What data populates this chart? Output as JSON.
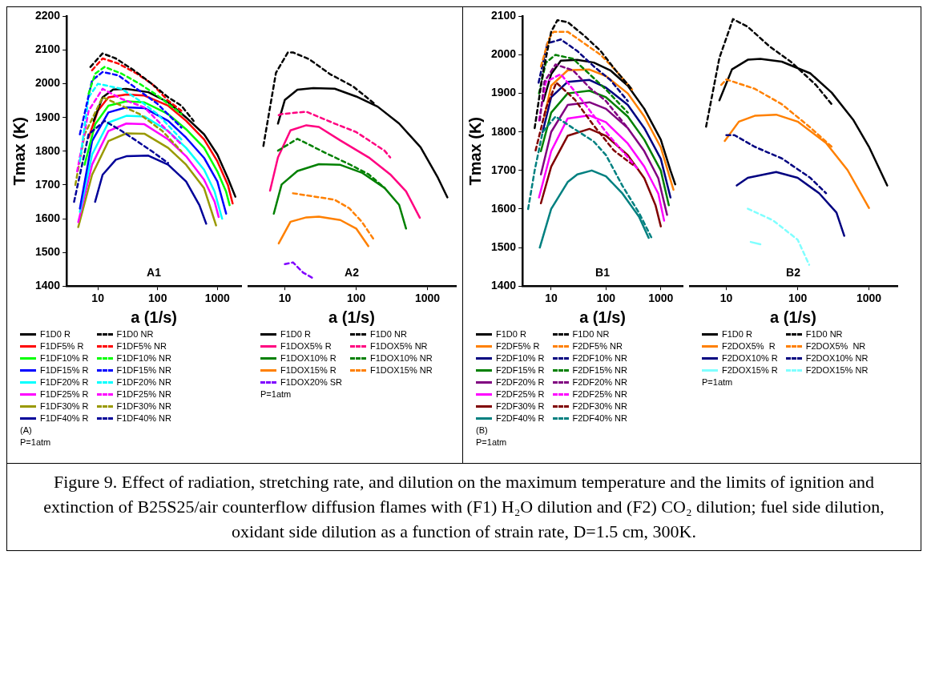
{
  "chart_data": [
    {
      "type": "line",
      "title": "A1",
      "xlabel": "a (1/s)",
      "ylabel": "Tmax (K)",
      "log": "x",
      "xlim": [
        3,
        2500
      ],
      "xticks": [
        10,
        100,
        1000
      ],
      "ylim": [
        1400,
        2200
      ],
      "yticks": [
        1400,
        1500,
        1600,
        1700,
        1800,
        1900,
        2000,
        2100,
        2200
      ],
      "grid": false,
      "marker": "none",
      "legend": "bottom",
      "annotations": [
        "(A)",
        "P=1atm"
      ],
      "series": [
        {
          "name": "F1D0 R",
          "color": "#000000",
          "line_style": "solid",
          "x": [
            8.5,
            12,
            18,
            30,
            70,
            150,
            300,
            600,
            1000,
            1500,
            2000
          ],
          "values": [
            1890,
            1960,
            1983,
            1985,
            1975,
            1945,
            1900,
            1850,
            1790,
            1720,
            1665
          ]
        },
        {
          "name": "F1D0 NR",
          "color": "#000000",
          "line_style": "dashed",
          "x": [
            7.5,
            12,
            20,
            40,
            80,
            150,
            250,
            400
          ],
          "values": [
            2050,
            2090,
            2075,
            2040,
            2000,
            1960,
            1935,
            1890
          ]
        },
        {
          "name": "F1DF5% R",
          "color": "#ff0000",
          "line_style": "solid",
          "x": [
            7,
            10,
            15,
            30,
            60,
            150,
            300,
            600,
            1000,
            1500,
            1800
          ],
          "values": [
            1840,
            1920,
            1960,
            1968,
            1965,
            1935,
            1890,
            1835,
            1770,
            1700,
            1645
          ]
        },
        {
          "name": "F1DF5% NR",
          "color": "#ff0000",
          "line_style": "dashed",
          "x": [
            8,
            12,
            22,
            45,
            80,
            150,
            250
          ],
          "values": [
            2040,
            2075,
            2060,
            2030,
            2000,
            1950,
            1920
          ]
        },
        {
          "name": "F1DF10% R",
          "color": "#00ff00",
          "line_style": "solid",
          "x": [
            6,
            9,
            15,
            30,
            60,
            150,
            300,
            600,
            1000,
            1400,
            1600
          ],
          "values": [
            1760,
            1880,
            1935,
            1948,
            1945,
            1910,
            1865,
            1810,
            1740,
            1680,
            1640
          ]
        },
        {
          "name": "F1DF10% NR",
          "color": "#00ff00",
          "line_style": "dashed",
          "x": [
            7,
            9,
            13,
            25,
            50,
            100,
            250
          ],
          "values": [
            1970,
            2030,
            2050,
            2030,
            2000,
            1965,
            1910
          ]
        },
        {
          "name": "F1DF15% R",
          "color": "#0000ff",
          "line_style": "solid",
          "x": [
            5,
            8,
            15,
            30,
            60,
            150,
            300,
            600,
            1000,
            1400
          ],
          "values": [
            1630,
            1830,
            1915,
            1930,
            1928,
            1890,
            1840,
            1780,
            1710,
            1615
          ]
        },
        {
          "name": "F1DF15% NR",
          "color": "#0000ff",
          "line_style": "dashed",
          "x": [
            5,
            8,
            12,
            22,
            45,
            100,
            250
          ],
          "values": [
            1850,
            2010,
            2035,
            2025,
            1985,
            1940,
            1870
          ]
        },
        {
          "name": "F1DF20% R",
          "color": "#00ffff",
          "line_style": "solid",
          "x": [
            5,
            8,
            15,
            30,
            60,
            150,
            300,
            600,
            900,
            1200
          ],
          "values": [
            1620,
            1790,
            1885,
            1905,
            1903,
            1860,
            1810,
            1745,
            1680,
            1600
          ]
        },
        {
          "name": "F1DF20% NR",
          "color": "#00ffff",
          "line_style": "dashed",
          "x": [
            5,
            7,
            10,
            25,
            50,
            100,
            250
          ],
          "values": [
            1770,
            1960,
            2000,
            1985,
            1950,
            1910,
            1835
          ]
        },
        {
          "name": "F1DF25% R",
          "color": "#ff00ff",
          "line_style": "solid",
          "x": [
            4.7,
            8,
            15,
            30,
            60,
            150,
            300,
            600,
            900,
            1050
          ],
          "values": [
            1590,
            1760,
            1860,
            1882,
            1880,
            1835,
            1785,
            1715,
            1650,
            1605
          ]
        },
        {
          "name": "F1DF25% NR",
          "color": "#ff00ff",
          "line_style": "dashed",
          "x": [
            4.5,
            7,
            12,
            25,
            60,
            130,
            250
          ],
          "values": [
            1740,
            1920,
            1985,
            1955,
            1930,
            1870,
            1820
          ]
        },
        {
          "name": "F1DF30% R",
          "color": "#999900",
          "line_style": "solid",
          "x": [
            4.7,
            8,
            15,
            30,
            60,
            150,
            300,
            600,
            950
          ],
          "values": [
            1575,
            1730,
            1830,
            1853,
            1852,
            1810,
            1760,
            1690,
            1580
          ]
        },
        {
          "name": "F1DF30% NR",
          "color": "#999900",
          "line_style": "dashed",
          "x": [
            4.2,
            6,
            12,
            25,
            50,
            120,
            250
          ],
          "values": [
            1700,
            1850,
            1960,
            1935,
            1910,
            1860,
            1800
          ]
        },
        {
          "name": "F1DF40% R",
          "color": "#000099",
          "line_style": "solid",
          "x": [
            9,
            12,
            20,
            30,
            70,
            150,
            300,
            500,
            650
          ],
          "values": [
            1650,
            1730,
            1775,
            1785,
            1787,
            1760,
            1710,
            1640,
            1585
          ]
        },
        {
          "name": "F1DF40% NR",
          "color": "#000099",
          "line_style": "dashed",
          "x": [
            4,
            7,
            13,
            25,
            45,
            80,
            150
          ],
          "values": [
            1650,
            1850,
            1890,
            1860,
            1830,
            1800,
            1765
          ]
        }
      ]
    },
    {
      "type": "line",
      "title": "A2",
      "xlabel": "a (1/s)",
      "log": "x",
      "xlim": [
        3,
        2500
      ],
      "xticks": [
        10,
        100,
        1000
      ],
      "ylim": [
        1400,
        2200
      ],
      "tick_labels": "x",
      "grid": false,
      "marker": "none",
      "legend": "bottom",
      "annotations": [
        "P=1atm"
      ],
      "series": [
        {
          "name": "F1D0 R",
          "color": "#000000",
          "line_style": "solid",
          "x": [
            8,
            10,
            15,
            25,
            50,
            100,
            200,
            400,
            800,
            1400,
            1900
          ],
          "values": [
            1880,
            1950,
            1980,
            1985,
            1983,
            1960,
            1930,
            1880,
            1810,
            1720,
            1662
          ]
        },
        {
          "name": "F1D0 NR",
          "color": "#000000",
          "line_style": "dashed",
          "x": [
            5,
            7.5,
            11,
            13,
            22,
            43,
            90,
            190
          ],
          "values": [
            1814,
            2030,
            2090,
            2090,
            2070,
            2026,
            1990,
            1935
          ]
        },
        {
          "name": "F1DOX5% R",
          "color": "#ff0080",
          "line_style": "solid",
          "x": [
            6.2,
            8,
            12,
            20,
            30,
            60,
            150,
            300,
            500,
            780
          ],
          "values": [
            1682,
            1780,
            1860,
            1875,
            1870,
            1830,
            1780,
            1730,
            1680,
            1602
          ]
        },
        {
          "name": "F1DOX5% NR",
          "color": "#ff0080",
          "line_style": "dashed",
          "x": [
            8.2,
            9,
            20,
            50,
            100,
            250,
            300
          ],
          "values": [
            1905,
            1908,
            1915,
            1880,
            1855,
            1800,
            1780
          ]
        },
        {
          "name": "F1DOX10% R",
          "color": "#008000",
          "line_style": "solid",
          "x": [
            7,
            9,
            15,
            30,
            60,
            120,
            250,
            400,
            500
          ],
          "values": [
            1614,
            1700,
            1740,
            1760,
            1758,
            1735,
            1690,
            1640,
            1570
          ]
        },
        {
          "name": "F1DOX10% NR",
          "color": "#008000",
          "line_style": "dashed",
          "x": [
            8,
            15,
            40,
            80,
            150,
            250
          ],
          "values": [
            1800,
            1835,
            1790,
            1760,
            1730,
            1690
          ]
        },
        {
          "name": "F1DOX15% R",
          "color": "#ff8000",
          "line_style": "solid",
          "x": [
            8.2,
            12,
            20,
            30,
            60,
            100,
            148
          ],
          "values": [
            1526,
            1590,
            1603,
            1605,
            1595,
            1570,
            1518
          ]
        },
        {
          "name": "F1DOX15% NR",
          "color": "#ff8000",
          "line_style": "dashed",
          "x": [
            13,
            25,
            50,
            80,
            120,
            180
          ],
          "values": [
            1674,
            1665,
            1655,
            1630,
            1590,
            1535
          ]
        },
        {
          "name": "F1DOX20% SR",
          "color": "#8000ff",
          "line_style": "dashed",
          "x": [
            10,
            13,
            18,
            24
          ],
          "values": [
            1465,
            1470,
            1440,
            1425
          ]
        }
      ]
    },
    {
      "type": "line",
      "title": "B1",
      "xlabel": "a (1/s)",
      "ylabel": "Tmax (K)",
      "log": "x",
      "xlim": [
        3,
        2500
      ],
      "xticks": [
        10,
        100,
        1000
      ],
      "ylim": [
        1400,
        2100
      ],
      "yticks": [
        1400,
        1500,
        1600,
        1700,
        1800,
        1900,
        2000,
        2100
      ],
      "grid": false,
      "marker": "none",
      "legend": "bottom",
      "annotations": [
        "(B)",
        "P=1atm"
      ],
      "series": [
        {
          "name": "F1D0 R",
          "color": "#000000",
          "line_style": "solid",
          "x": [
            7.2,
            10,
            15,
            30,
            60,
            120,
            250,
            500,
            1000,
            1500,
            1830
          ],
          "values": [
            1880,
            1950,
            1985,
            1987,
            1980,
            1960,
            1920,
            1860,
            1780,
            1700,
            1664
          ]
        },
        {
          "name": "F1D0 NR",
          "color": "#000000",
          "line_style": "dashed",
          "x": [
            5,
            7,
            10,
            13,
            20,
            40,
            80,
            150,
            300
          ],
          "values": [
            1810,
            1950,
            2060,
            2090,
            2085,
            2050,
            2010,
            1960,
            1910
          ]
        },
        {
          "name": "F2DF5% R",
          "color": "#ff8000",
          "line_style": "solid",
          "x": [
            7.5,
            10,
            20,
            50,
            100,
            250,
            500,
            1000,
            1700
          ],
          "values": [
            1840,
            1920,
            1960,
            1962,
            1945,
            1900,
            1840,
            1760,
            1650
          ]
        },
        {
          "name": "F2DF5% NR",
          "color": "#ff8000",
          "line_style": "dashed",
          "x": [
            6.5,
            9,
            11,
            20,
            40,
            80,
            150,
            300
          ],
          "values": [
            1970,
            2040,
            2060,
            2060,
            2030,
            2000,
            1960,
            1910
          ]
        },
        {
          "name": "F2DF10% R",
          "color": "#000080",
          "line_style": "solid",
          "x": [
            7,
            10,
            20,
            50,
            100,
            250,
            500,
            1000,
            1500
          ],
          "values": [
            1800,
            1890,
            1930,
            1935,
            1915,
            1870,
            1810,
            1730,
            1630
          ]
        },
        {
          "name": "F2DF10% NR",
          "color": "#000080",
          "line_style": "dashed",
          "x": [
            5.9,
            8.5,
            15,
            30,
            60,
            120,
            250
          ],
          "values": [
            1928,
            2030,
            2040,
            2010,
            1970,
            1935,
            1880
          ]
        },
        {
          "name": "F2DF15% R",
          "color": "#008000",
          "line_style": "solid",
          "x": [
            6.5,
            10,
            20,
            50,
            100,
            250,
            500,
            1000,
            1400
          ],
          "values": [
            1750,
            1850,
            1900,
            1907,
            1890,
            1840,
            1780,
            1700,
            1610
          ]
        },
        {
          "name": "F2DF15% NR",
          "color": "#008000",
          "line_style": "dashed",
          "x": [
            6,
            8,
            12,
            25,
            50,
            100,
            250
          ],
          "values": [
            1900,
            1980,
            2000,
            1990,
            1950,
            1910,
            1850
          ]
        },
        {
          "name": "F2DF20% R",
          "color": "#800080",
          "line_style": "solid",
          "x": [
            6.5,
            10,
            20,
            50,
            100,
            250,
            500,
            900,
            1300
          ],
          "values": [
            1690,
            1800,
            1870,
            1877,
            1860,
            1810,
            1750,
            1680,
            1585
          ]
        },
        {
          "name": "F2DF20% NR",
          "color": "#800080",
          "line_style": "dashed",
          "x": [
            6.2,
            7.5,
            12,
            25,
            50,
            100,
            250
          ],
          "values": [
            1830,
            1930,
            1975,
            1960,
            1915,
            1880,
            1810
          ]
        },
        {
          "name": "F2DF25% R",
          "color": "#ff00ff",
          "line_style": "solid",
          "x": [
            6,
            10,
            20,
            50,
            100,
            250,
            500,
            900,
            1150
          ],
          "values": [
            1630,
            1750,
            1835,
            1843,
            1825,
            1770,
            1710,
            1640,
            1570
          ]
        },
        {
          "name": "F2DF25% NR",
          "color": "#ff00ff",
          "line_style": "dashed",
          "x": [
            6,
            8,
            15,
            40,
            100,
            200,
            400
          ],
          "values": [
            1830,
            1930,
            1950,
            1875,
            1800,
            1750,
            1700
          ]
        },
        {
          "name": "F2DF30% R",
          "color": "#800000",
          "line_style": "solid",
          "x": [
            6.5,
            10,
            20,
            50,
            100,
            250,
            500,
            800,
            1000
          ],
          "values": [
            1615,
            1710,
            1790,
            1808,
            1790,
            1740,
            1680,
            1610,
            1555
          ]
        },
        {
          "name": "F2DF30% NR",
          "color": "#800000",
          "line_style": "dashed",
          "x": [
            5.2,
            8,
            12.4,
            27,
            58,
            139,
            335
          ],
          "values": [
            1752,
            1860,
            1928,
            1884,
            1819,
            1752,
            1711
          ]
        },
        {
          "name": "F2DF40% R",
          "color": "#008080",
          "line_style": "solid",
          "x": [
            6.2,
            10,
            20,
            30,
            55,
            100,
            200,
            400,
            600
          ],
          "values": [
            1500,
            1600,
            1670,
            1690,
            1700,
            1685,
            1640,
            1580,
            1525
          ]
        },
        {
          "name": "F2DF40% NR",
          "color": "#008080",
          "line_style": "dashed",
          "x": [
            3.8,
            5,
            7,
            12,
            25,
            60,
            100,
            200,
            400,
            680
          ],
          "values": [
            1600,
            1700,
            1800,
            1840,
            1810,
            1775,
            1740,
            1660,
            1590,
            1525
          ]
        }
      ]
    },
    {
      "type": "line",
      "title": "B2",
      "xlabel": "a (1/s)",
      "log": "x",
      "xlim": [
        3,
        2500
      ],
      "xticks": [
        10,
        100,
        1000
      ],
      "ylim": [
        1400,
        2100
      ],
      "tick_labels": "x",
      "grid": false,
      "marker": "none",
      "legend": "bottom",
      "annotations": [
        "P=1atm",
        "Figure 9. Effect of radiation, stretching rate, and dilution on the maximum temperature and the limits of ignition and extinction of B25S25/air counterflow diffusion flames with (F1) H₂O dilution and (F2) CO₂ dilution; fuel side dilution, oxidant side dilution as a function of strain rate, D=1.5 cm, 300K."
      ],
      "series": [
        {
          "name": "F1D0 R",
          "color": "#000000",
          "line_style": "solid",
          "x": [
            8,
            12,
            20,
            30,
            60,
            150,
            300,
            600,
            1000,
            1800
          ],
          "values": [
            1880,
            1960,
            1985,
            1987,
            1980,
            1950,
            1900,
            1830,
            1760,
            1660
          ]
        },
        {
          "name": "F1D0 NR",
          "color": "#000000",
          "line_style": "dashed",
          "x": [
            5.2,
            8,
            12.4,
            20,
            40,
            80,
            180,
            300
          ],
          "values": [
            1812,
            1990,
            2090,
            2070,
            2020,
            1980,
            1920,
            1870
          ]
        },
        {
          "name": "F2DOX5%  R",
          "color": "#ff8000",
          "line_style": "solid",
          "x": [
            9.5,
            15,
            25,
            50,
            100,
            250,
            500,
            1000
          ],
          "values": [
            1775,
            1825,
            1840,
            1843,
            1825,
            1770,
            1700,
            1602
          ]
        },
        {
          "name": "F2DOX5%  NR",
          "color": "#ff8000",
          "line_style": "dashed",
          "x": [
            8.5,
            10,
            25,
            60,
            150,
            300
          ],
          "values": [
            1920,
            1934,
            1910,
            1870,
            1810,
            1760
          ]
        },
        {
          "name": "F2DOX10% R",
          "color": "#000080",
          "line_style": "solid",
          "x": [
            14,
            20,
            50,
            100,
            200,
            350,
            450
          ],
          "values": [
            1660,
            1680,
            1695,
            1680,
            1640,
            1590,
            1530
          ]
        },
        {
          "name": "F2DOX10% NR",
          "color": "#000080",
          "line_style": "dashed",
          "x": [
            10,
            13,
            25,
            60,
            150,
            250
          ],
          "values": [
            1790,
            1790,
            1760,
            1730,
            1680,
            1640
          ]
        },
        {
          "name": "F2DOX15% R",
          "color": "#80ffff",
          "line_style": "solid",
          "x": [
            22,
            30
          ],
          "values": [
            1514,
            1508
          ]
        },
        {
          "name": "F2DOX15% NR",
          "color": "#80ffff",
          "line_style": "dashed",
          "x": [
            20,
            45,
            100,
            145
          ],
          "values": [
            1600,
            1570,
            1520,
            1455
          ]
        }
      ]
    }
  ]
}
